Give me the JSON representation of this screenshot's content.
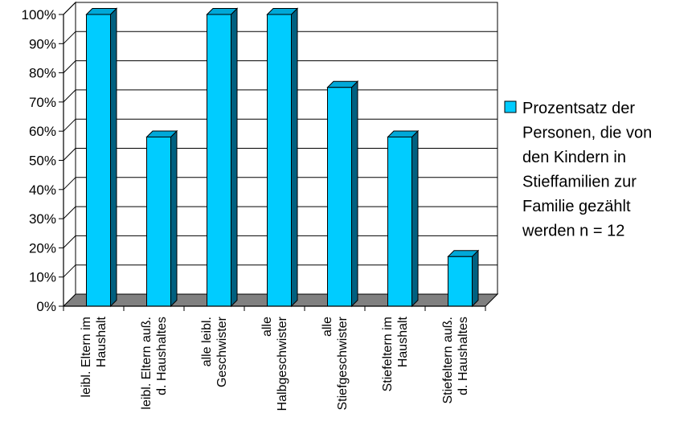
{
  "chart_data": {
    "type": "bar",
    "title": "",
    "xlabel": "",
    "ylabel": "",
    "ylim": [
      0,
      100
    ],
    "yticks": [
      "0%",
      "10%",
      "20%",
      "30%",
      "40%",
      "50%",
      "60%",
      "70%",
      "80%",
      "90%",
      "100%"
    ],
    "grid": true,
    "legend_position": "right",
    "categories": [
      [
        "leibl. Eltern im",
        "Haushalt"
      ],
      [
        "leibl. Eltern auß.",
        "d. Haushaltes"
      ],
      [
        "alle leibl.",
        "Geschwister"
      ],
      [
        "alle",
        "Halbgeschwister"
      ],
      [
        "alle",
        "Stiefgeschwister"
      ],
      [
        "Stiefeltern im",
        "Haushalt"
      ],
      [
        "Stiefeltern auß.",
        "d. Haushaltes"
      ]
    ],
    "series": [
      {
        "name": [
          "Prozentsatz der",
          "Personen, die von",
          "den Kindern in",
          "Stieffamilien zur",
          "Familie gezählt",
          "werden n = 12"
        ],
        "values": [
          100,
          58,
          100,
          100,
          75,
          58,
          17
        ],
        "color": "#00ccff",
        "side_color": "#006080",
        "top_color": "#00a8d8"
      }
    ]
  }
}
